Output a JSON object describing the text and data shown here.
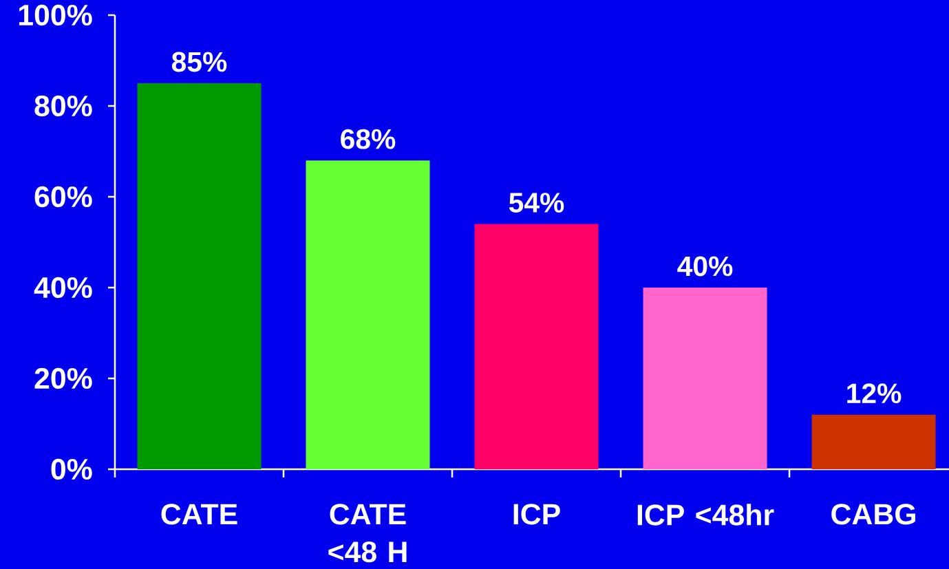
{
  "chart_data": {
    "type": "bar",
    "categories": [
      "CATE",
      "CATE <48 H",
      "ICP",
      "ICP <48hr",
      "CABG"
    ],
    "values": [
      85,
      68,
      54,
      40,
      12
    ],
    "colors": [
      "#009900",
      "#66ff33",
      "#ff0066",
      "#ff66cc",
      "#cc3300"
    ],
    "value_labels": [
      "85%",
      "68%",
      "54%",
      "40%",
      "12%"
    ],
    "ylim": [
      0,
      100
    ],
    "yticks": [
      {
        "value": 0,
        "label": "0%"
      },
      {
        "value": 20,
        "label": "20%"
      },
      {
        "value": 40,
        "label": "40%"
      },
      {
        "value": 60,
        "label": "60%"
      },
      {
        "value": 80,
        "label": "80%"
      },
      {
        "value": 100,
        "label": "100%"
      }
    ]
  }
}
